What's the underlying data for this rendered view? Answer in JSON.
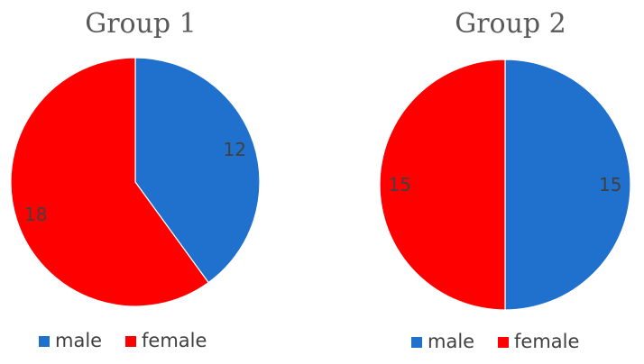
{
  "chart_data": [
    {
      "type": "pie",
      "title": "Group 1",
      "categories": [
        "male",
        "female"
      ],
      "values": [
        12,
        18
      ],
      "colors": [
        "#1f71cd",
        "#ff0000"
      ],
      "data_labels": [
        "12",
        "18"
      ],
      "start_angle": "12 o'clock, clockwise",
      "legend": {
        "placement": "bottom",
        "entries": [
          "male",
          "female"
        ]
      }
    },
    {
      "type": "pie",
      "title": "Group 2",
      "categories": [
        "male",
        "female"
      ],
      "values": [
        15,
        15
      ],
      "colors": [
        "#1f71cd",
        "#ff0000"
      ],
      "data_labels": [
        "15",
        "15"
      ],
      "start_angle": "12 o'clock, clockwise",
      "legend": {
        "placement": "bottom",
        "entries": [
          "male",
          "female"
        ]
      }
    }
  ]
}
